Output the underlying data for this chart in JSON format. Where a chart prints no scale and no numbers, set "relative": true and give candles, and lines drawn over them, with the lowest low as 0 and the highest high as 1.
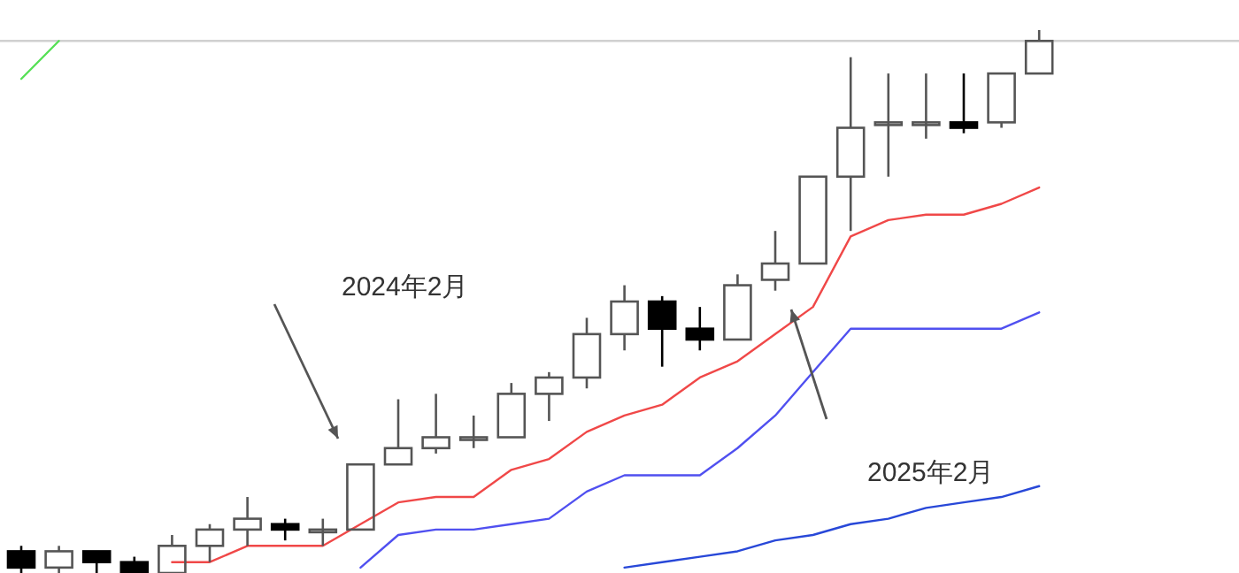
{
  "chart_data": {
    "type": "candlestick",
    "relative": true,
    "categories": [
      null,
      null,
      null,
      null,
      null,
      null,
      null,
      null,
      null,
      null,
      null,
      null,
      null,
      null,
      null,
      null,
      null,
      null,
      null,
      null,
      null,
      null,
      null,
      null,
      null,
      null,
      null,
      null
    ],
    "ohlc": [
      [
        0.04,
        0.05,
        0,
        0.01
      ],
      [
        0.01,
        0.05,
        0,
        0.04
      ],
      [
        0.04,
        0.04,
        0,
        0.02
      ],
      [
        0.02,
        0.03,
        0,
        0
      ],
      [
        0,
        0.07,
        0,
        0.05
      ],
      [
        0.05,
        0.09,
        0.02,
        0.08
      ],
      [
        0.08,
        0.14,
        0.05,
        0.1
      ],
      [
        0.09,
        0.1,
        0.06,
        0.08
      ],
      [
        0.08,
        0.1,
        0.05,
        0.08
      ],
      [
        0.08,
        0.2,
        0.08,
        0.2
      ],
      [
        0.2,
        0.32,
        0.2,
        0.23
      ],
      [
        0.23,
        0.33,
        0.22,
        0.25
      ],
      [
        0.25,
        0.29,
        0.23,
        0.25
      ],
      [
        0.25,
        0.35,
        0.25,
        0.33
      ],
      [
        0.33,
        0.37,
        0.28,
        0.36
      ],
      [
        0.36,
        0.47,
        0.34,
        0.44
      ],
      [
        0.44,
        0.53,
        0.41,
        0.5
      ],
      [
        0.5,
        0.51,
        0.38,
        0.45
      ],
      [
        0.45,
        0.49,
        0.41,
        0.43
      ],
      [
        0.43,
        0.55,
        0.43,
        0.53
      ],
      [
        0.54,
        0.63,
        0.52,
        0.57
      ],
      [
        0.57,
        0.73,
        0.57,
        0.73
      ],
      [
        0.73,
        0.95,
        0.63,
        0.82
      ],
      [
        0.83,
        0.92,
        0.73,
        0.83
      ],
      [
        0.83,
        0.92,
        0.8,
        0.83
      ],
      [
        0.83,
        0.92,
        0.81,
        0.82
      ],
      [
        0.83,
        0.92,
        0.82,
        0.92
      ],
      [
        0.92,
        1,
        0.92,
        0.98
      ]
    ],
    "series": [
      {
        "type": "line",
        "color": "#55e055",
        "values": [
          0.91,
          0.98,
          null,
          null,
          null,
          null,
          null,
          null,
          null,
          null,
          null,
          null,
          null,
          null,
          null,
          null,
          null,
          null,
          null,
          null,
          null,
          null,
          null,
          null,
          null,
          null,
          null,
          null
        ]
      },
      {
        "type": "line",
        "color": "#f04848",
        "values": [
          null,
          null,
          null,
          null,
          0.02,
          0.02,
          0.05,
          0.05,
          0.05,
          0.09,
          0.13,
          0.14,
          0.14,
          0.19,
          0.21,
          0.26,
          0.29,
          0.31,
          0.36,
          0.39,
          0.44,
          0.49,
          0.62,
          0.65,
          0.66,
          0.66,
          0.68,
          0.71
        ]
      },
      {
        "type": "line",
        "color": "#5050f0",
        "values": [
          null,
          null,
          null,
          null,
          null,
          null,
          null,
          null,
          null,
          0.01,
          0.07,
          0.08,
          0.08,
          0.09,
          0.1,
          0.15,
          0.18,
          0.18,
          0.18,
          0.23,
          0.29,
          0.37,
          0.45,
          0.45,
          0.45,
          0.45,
          0.45,
          0.48
        ]
      },
      {
        "type": "line",
        "color": "#2848d8",
        "values": [
          null,
          null,
          null,
          null,
          null,
          null,
          null,
          null,
          null,
          null,
          null,
          null,
          null,
          null,
          null,
          null,
          0.01,
          0.02,
          0.03,
          0.04,
          0.06,
          0.07,
          0.09,
          0.1,
          0.12,
          0.13,
          0.14,
          0.16
        ]
      }
    ],
    "ref_lines": [
      {
        "axis": "y",
        "value": 0.98,
        "color": "#d0d0d0"
      }
    ],
    "annotations": [
      "2024年2月",
      "2025年2月"
    ]
  }
}
